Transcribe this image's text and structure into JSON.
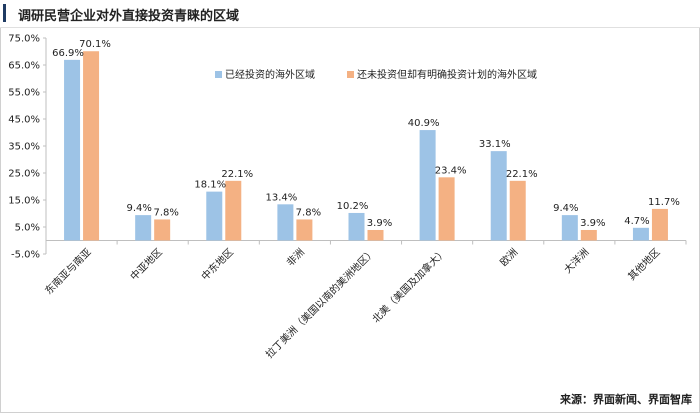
{
  "header": {
    "title": "调研民营企业对外直接投资青睐的区域"
  },
  "source": "来源：界面新闻、界面智库",
  "colors": {
    "series1": "#9dc3e6",
    "series2": "#f4b183",
    "axis": "#bfbfbf"
  },
  "chart_data": {
    "type": "bar",
    "ylim": [
      -5,
      75
    ],
    "ytick_step": 10,
    "ytick_labels": [
      "-5.0%",
      "5.0%",
      "15.0%",
      "25.0%",
      "35.0%",
      "45.0%",
      "55.0%",
      "65.0%",
      "75.0%"
    ],
    "legend_position": "top-right",
    "categories": [
      "东南亚与南亚",
      "中亚地区",
      "中东地区",
      "非洲",
      "拉丁美洲（美国以南的美洲地区）",
      "北美（美国及加拿大）",
      "欧洲",
      "大洋洲",
      "其他地区"
    ],
    "series": [
      {
        "name": "已经投资的海外区域",
        "values": [
          66.9,
          9.4,
          18.1,
          13.4,
          10.2,
          40.9,
          33.1,
          9.4,
          4.7
        ],
        "labels": [
          "66.9%",
          "9.4%",
          "18.1%",
          "13.4%",
          "10.2%",
          "40.9%",
          "33.1%",
          "9.4%",
          "4.7%"
        ]
      },
      {
        "name": "还未投资但却有明确投资计划的海外区域",
        "values": [
          70.1,
          7.8,
          22.1,
          7.8,
          3.9,
          23.4,
          22.1,
          3.9,
          11.7
        ],
        "labels": [
          "70.1%",
          "7.8%",
          "22.1%",
          "7.8%",
          "3.9%",
          "23.4%",
          "22.1%",
          "3.9%",
          "11.7%"
        ]
      }
    ]
  }
}
